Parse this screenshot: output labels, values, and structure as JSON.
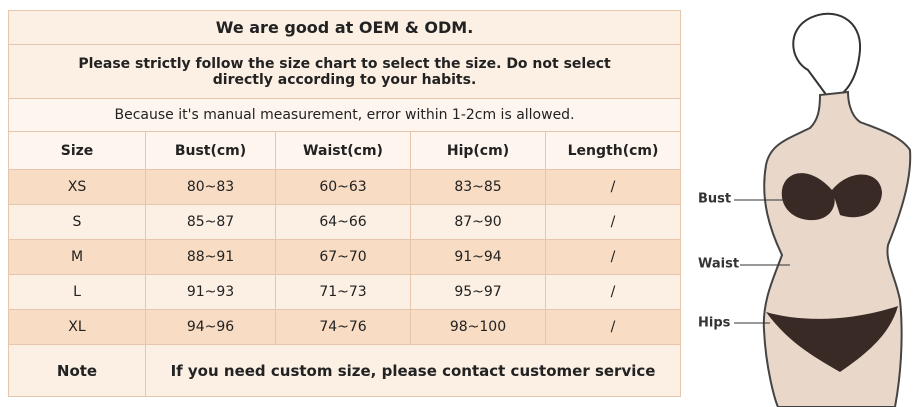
{
  "header": {
    "title": "We are good at OEM & ODM.",
    "instruction": "Please strictly follow the size chart  to select the size. Do not select directly according to your habits.",
    "note": "Because it's manual measurement, error within 1-2cm is allowed."
  },
  "table": {
    "columns": [
      "Size",
      "Bust(cm)",
      "Waist(cm)",
      "Hip(cm)",
      "Length(cm)"
    ],
    "rows": [
      [
        "XS",
        "80~83",
        "60~63",
        "83~85",
        "/"
      ],
      [
        "S",
        "85~87",
        "64~66",
        "87~90",
        "/"
      ],
      [
        "M",
        "88~91",
        "67~70",
        "91~94",
        "/"
      ],
      [
        "L",
        "91~93",
        "71~73",
        "95~97",
        "/"
      ],
      [
        "XL",
        "94~96",
        "74~76",
        "98~100",
        "/"
      ]
    ]
  },
  "footer": {
    "label": "Note",
    "text": "If you need custom size, please contact customer service"
  },
  "figure": {
    "labels": [
      "Bust",
      "Waist",
      "Hips"
    ]
  }
}
